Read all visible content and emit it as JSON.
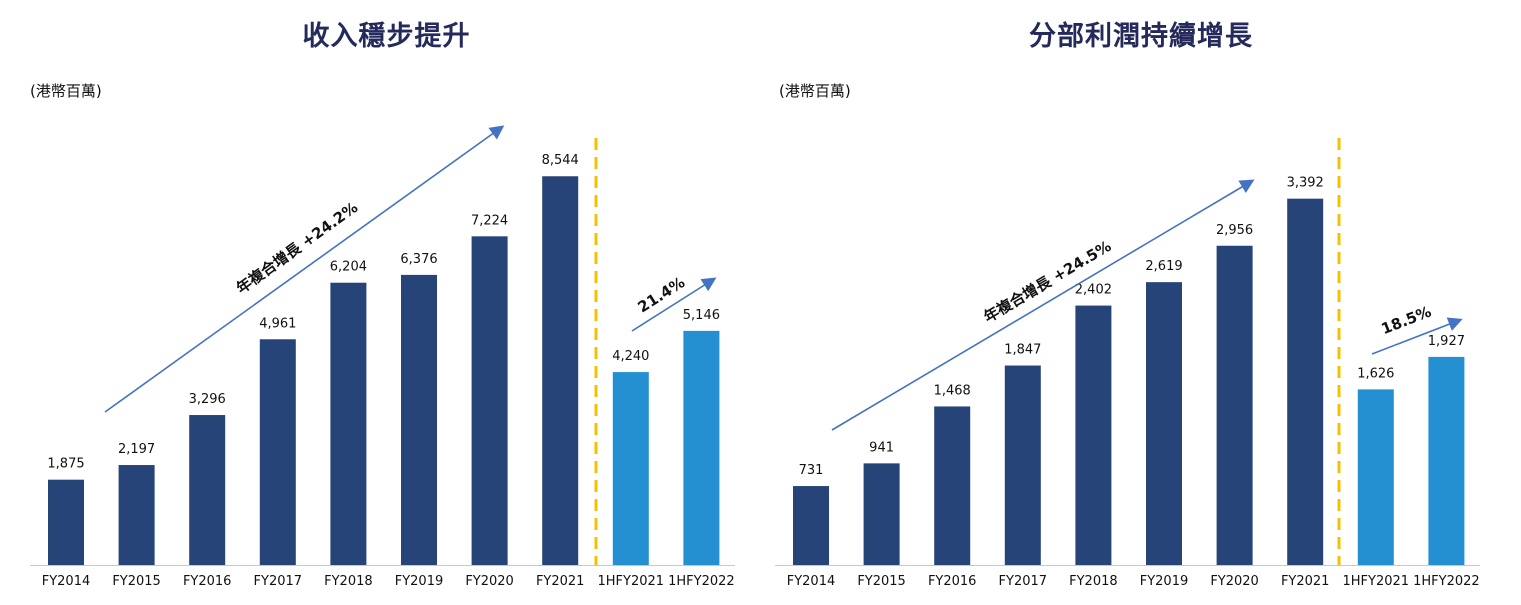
{
  "colors": {
    "title": "#252a5c",
    "bar_fy": "#264478",
    "bar_half": "#2490d2",
    "divider": "#f5c000",
    "arrow": "#4472c4",
    "axis": "#c8c8c8"
  },
  "chart_data": [
    {
      "type": "bar",
      "title": "收入穩步提升",
      "unit": "(港幣百萬)",
      "categories": [
        "FY2014",
        "FY2015",
        "FY2016",
        "FY2017",
        "FY2018",
        "FY2019",
        "FY2020",
        "FY2021",
        "1HFY2021",
        "1HFY2022"
      ],
      "values": [
        1875,
        2197,
        3296,
        4961,
        6204,
        6376,
        7224,
        8544,
        4240,
        5146
      ],
      "value_labels": [
        "1,875",
        "2,197",
        "3,296",
        "4,961",
        "6,204",
        "6,376",
        "7,224",
        "8,544",
        "4,240",
        "5,146"
      ],
      "ylim": [
        0,
        10000
      ],
      "grid": false,
      "annotations": {
        "cagr_label": "年複合增長 +24.2%",
        "half_growth_label": "21.4%"
      }
    },
    {
      "type": "bar",
      "title": "分部利潤持續增長",
      "unit": "(港幣百萬)",
      "categories": [
        "FY2014",
        "FY2015",
        "FY2016",
        "FY2017",
        "FY2018",
        "FY2019",
        "FY2020",
        "FY2021",
        "1HFY2021",
        "1HFY2022"
      ],
      "values": [
        731,
        941,
        1468,
        1847,
        2402,
        2619,
        2956,
        3392,
        1626,
        1927
      ],
      "value_labels": [
        "731",
        "941",
        "1,468",
        "1,847",
        "2,402",
        "2,619",
        "2,956",
        "3,392",
        "1,626",
        "1,927"
      ],
      "ylim": [
        0,
        4000
      ],
      "grid": false,
      "annotations": {
        "cagr_label": "年複合增長 +24.5%",
        "half_growth_label": "18.5%"
      }
    }
  ]
}
